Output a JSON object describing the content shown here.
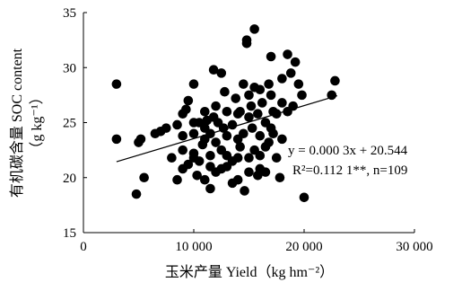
{
  "chart_data": {
    "type": "scatter",
    "xlabel": "玉米产量 Yield（kg hm⁻²）",
    "ylabel": "有机碳含量 SOC content",
    "ylabel_unit": "（g kg⁻¹）",
    "xlim": [
      0,
      30000
    ],
    "ylim": [
      15,
      35
    ],
    "xticks": [
      0,
      10000,
      20000,
      30000
    ],
    "xtick_labels": [
      "0",
      "10 000",
      "20 000",
      "30 000"
    ],
    "yticks": [
      15,
      20,
      25,
      30,
      35
    ],
    "ytick_labels": [
      "15",
      "20",
      "25",
      "30",
      "35"
    ],
    "grid": false,
    "annotations": {
      "equation": "y = 0.000 3x + 20.544",
      "r2_label": "R²=0.112 1**, n=109"
    },
    "trendline": {
      "slope": 0.0003,
      "intercept": 20.544,
      "x_range": [
        3000,
        23000
      ]
    },
    "points": [
      [
        3000,
        28.5
      ],
      [
        3000,
        23.5
      ],
      [
        4800,
        18.5
      ],
      [
        5000,
        23.2
      ],
      [
        5200,
        23.5
      ],
      [
        5500,
        20.0
      ],
      [
        6500,
        24.0
      ],
      [
        7000,
        24.2
      ],
      [
        7500,
        24.5
      ],
      [
        8000,
        21.8
      ],
      [
        8500,
        19.8
      ],
      [
        8500,
        24.8
      ],
      [
        9000,
        22.5
      ],
      [
        9000,
        25.8
      ],
      [
        9000,
        23.8
      ],
      [
        9300,
        26.2
      ],
      [
        9500,
        21.2
      ],
      [
        9500,
        27.0
      ],
      [
        10000,
        22.2
      ],
      [
        10000,
        28.5
      ],
      [
        10000,
        24.0
      ],
      [
        10000,
        21.8
      ],
      [
        10300,
        20.2
      ],
      [
        10500,
        25.0
      ],
      [
        10800,
        23.0
      ],
      [
        11000,
        19.8
      ],
      [
        11000,
        24.5
      ],
      [
        11000,
        26.0
      ],
      [
        11200,
        25.2
      ],
      [
        11500,
        19.0
      ],
      [
        11500,
        22.0
      ],
      [
        11500,
        24.0
      ],
      [
        11800,
        25.5
      ],
      [
        11800,
        29.8
      ],
      [
        12000,
        20.5
      ],
      [
        12000,
        23.2
      ],
      [
        12200,
        25.0
      ],
      [
        12500,
        20.8
      ],
      [
        12500,
        22.5
      ],
      [
        12500,
        29.5
      ],
      [
        12700,
        24.5
      ],
      [
        13000,
        22.0
      ],
      [
        13000,
        26.0
      ],
      [
        13000,
        23.8
      ],
      [
        13500,
        21.5
      ],
      [
        13500,
        24.8
      ],
      [
        13800,
        27.2
      ],
      [
        14000,
        23.5
      ],
      [
        14000,
        21.8
      ],
      [
        14000,
        19.8
      ],
      [
        14200,
        26.0
      ],
      [
        14500,
        28.5
      ],
      [
        14500,
        24.0
      ],
      [
        14600,
        18.8
      ],
      [
        14800,
        32.2
      ],
      [
        14800,
        32.5
      ],
      [
        15000,
        21.8
      ],
      [
        15000,
        20.5
      ],
      [
        15000,
        27.5
      ],
      [
        15200,
        26.5
      ],
      [
        15300,
        24.5
      ],
      [
        15500,
        33.5
      ],
      [
        15500,
        28.2
      ],
      [
        15800,
        25.8
      ],
      [
        16000,
        20.8
      ],
      [
        16000,
        22.0
      ],
      [
        16200,
        26.8
      ],
      [
        16500,
        25.0
      ],
      [
        16500,
        20.5
      ],
      [
        16800,
        28.5
      ],
      [
        16800,
        23.2
      ],
      [
        17000,
        31.0
      ],
      [
        17000,
        27.5
      ],
      [
        17200,
        24.0
      ],
      [
        17500,
        25.8
      ],
      [
        17500,
        21.8
      ],
      [
        17800,
        20.0
      ],
      [
        18000,
        29.0
      ],
      [
        18000,
        23.5
      ],
      [
        18500,
        31.2
      ],
      [
        18500,
        26.0
      ],
      [
        18800,
        29.5
      ],
      [
        19000,
        26.5
      ],
      [
        19200,
        30.5
      ],
      [
        19500,
        28.5
      ],
      [
        19800,
        27.5
      ],
      [
        20000,
        18.2
      ],
      [
        22500,
        27.5
      ],
      [
        22800,
        28.8
      ],
      [
        16000,
        28.0
      ],
      [
        15000,
        25.5
      ],
      [
        14000,
        25.8
      ],
      [
        16000,
        23.8
      ],
      [
        15500,
        22.5
      ],
      [
        13000,
        21.0
      ],
      [
        12000,
        26.5
      ],
      [
        11000,
        23.5
      ],
      [
        10000,
        25.0
      ],
      [
        9000,
        20.8
      ],
      [
        17000,
        24.5
      ],
      [
        18000,
        26.8
      ],
      [
        12800,
        27.8
      ],
      [
        13500,
        19.5
      ],
      [
        10500,
        21.5
      ],
      [
        11500,
        21.0
      ],
      [
        16500,
        22.8
      ],
      [
        14200,
        22.8
      ],
      [
        15800,
        20.2
      ],
      [
        17200,
        26.0
      ]
    ]
  }
}
